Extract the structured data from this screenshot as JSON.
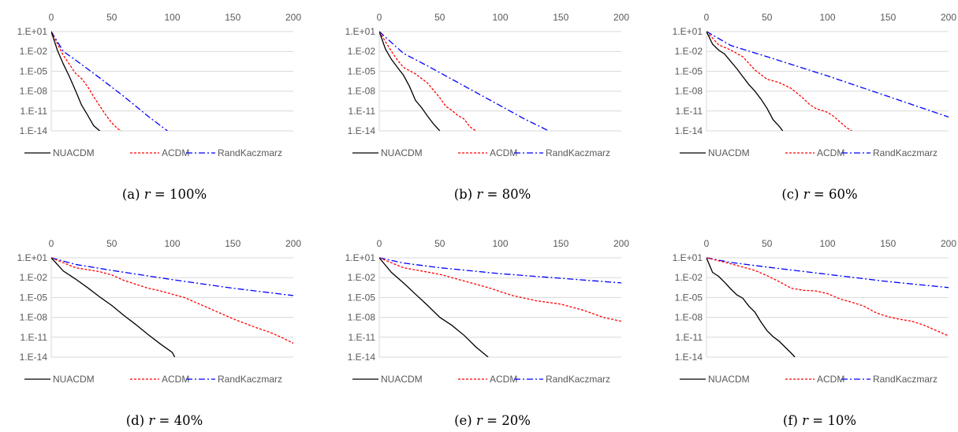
{
  "chart_data": [
    {
      "type": "line",
      "caption": {
        "label": "(a)",
        "var": "r",
        "eq": "=",
        "value": "100%"
      },
      "x_ticks": [
        "0",
        "50",
        "100",
        "150",
        "200"
      ],
      "y_ticks": [
        "1.E+01",
        "1.E-02",
        "1.E-05",
        "1.E-08",
        "1.E-11",
        "1.E-14"
      ],
      "xlim": [
        0,
        200
      ],
      "ylim_log10": [
        -14,
        1
      ],
      "y_scale": "log",
      "x_axis_position": "top",
      "legend_position": "bottom",
      "series": [
        {
          "name": "NUACDM",
          "color": "#000000",
          "dash": "solid",
          "x": [
            0,
            5,
            10,
            15,
            20,
            25,
            30,
            35,
            40,
            45
          ],
          "log10_y": [
            1,
            -1.8,
            -3.9,
            -5.8,
            -7.9,
            -10.1,
            -11.6,
            -13.2,
            -14,
            -15
          ]
        },
        {
          "name": "ACDM",
          "color": "#ff0000",
          "dash": "dashed",
          "x": [
            0,
            10,
            20,
            25,
            30,
            35,
            40,
            45,
            50,
            55,
            58
          ],
          "log10_y": [
            1,
            -2.6,
            -5.3,
            -6.1,
            -7.3,
            -8.8,
            -10.2,
            -11.6,
            -12.8,
            -13.7,
            -14
          ]
        },
        {
          "name": "RandKaczmarz",
          "color": "#0000ff",
          "dash": "dashdot",
          "x": [
            0,
            10,
            20,
            40,
            60,
            80,
            96
          ],
          "log10_y": [
            1,
            -2.0,
            -3.3,
            -6.0,
            -8.8,
            -11.8,
            -14
          ]
        }
      ]
    },
    {
      "type": "line",
      "caption": {
        "label": "(b)",
        "var": "r",
        "eq": "=",
        "value": "80%"
      },
      "x_ticks": [
        "0",
        "50",
        "100",
        "150",
        "200"
      ],
      "y_ticks": [
        "1.E+01",
        "1.E-02",
        "1.E-05",
        "1.E-08",
        "1.E-11",
        "1.E-14"
      ],
      "xlim": [
        0,
        200
      ],
      "ylim_log10": [
        -14,
        1
      ],
      "y_scale": "log",
      "x_axis_position": "top",
      "legend_position": "bottom",
      "series": [
        {
          "name": "NUACDM",
          "color": "#000000",
          "dash": "solid",
          "x": [
            0,
            5,
            10,
            15,
            20,
            25,
            30,
            35,
            40,
            45,
            50
          ],
          "log10_y": [
            1,
            -1.6,
            -3.2,
            -4.4,
            -5.6,
            -7.3,
            -9.4,
            -10.5,
            -11.8,
            -13.0,
            -14
          ]
        },
        {
          "name": "ACDM",
          "color": "#ff0000",
          "dash": "dashed",
          "x": [
            0,
            10,
            15,
            20,
            30,
            40,
            45,
            50,
            55,
            60,
            65,
            70,
            75,
            80
          ],
          "log10_y": [
            1,
            -2.0,
            -3.3,
            -4.4,
            -5.4,
            -6.8,
            -7.9,
            -9.0,
            -10.3,
            -10.9,
            -11.7,
            -12.2,
            -13.4,
            -14
          ]
        },
        {
          "name": "RandKaczmarz",
          "color": "#0000ff",
          "dash": "dashdot",
          "x": [
            0,
            20,
            40,
            60,
            80,
            100,
            120,
            140
          ],
          "log10_y": [
            1,
            -2.3,
            -4.2,
            -6.2,
            -8.2,
            -10.2,
            -12.2,
            -14
          ]
        }
      ]
    },
    {
      "type": "line",
      "caption": {
        "label": "(c)",
        "var": "r",
        "eq": "=",
        "value": "60%"
      },
      "x_ticks": [
        "0",
        "50",
        "100",
        "150",
        "200"
      ],
      "y_ticks": [
        "1.E+01",
        "1.E-02",
        "1.E-05",
        "1.E-08",
        "1.E-11",
        "1.E-14"
      ],
      "xlim": [
        0,
        200
      ],
      "ylim_log10": [
        -14,
        1
      ],
      "y_scale": "log",
      "x_axis_position": "top",
      "legend_position": "bottom",
      "series": [
        {
          "name": "NUACDM",
          "color": "#000000",
          "dash": "solid",
          "x": [
            0,
            5,
            10,
            15,
            20,
            25,
            30,
            35,
            40,
            45,
            50,
            55,
            60,
            63
          ],
          "log10_y": [
            1,
            -0.9,
            -1.8,
            -2.4,
            -3.5,
            -4.6,
            -5.8,
            -7.0,
            -8.0,
            -9.2,
            -10.6,
            -12.3,
            -13.3,
            -14
          ]
        },
        {
          "name": "ACDM",
          "color": "#ff0000",
          "dash": "dashed",
          "x": [
            0,
            10,
            20,
            30,
            40,
            50,
            60,
            70,
            80,
            85,
            90,
            95,
            100,
            105,
            110,
            115,
            120
          ],
          "log10_y": [
            1,
            -1.0,
            -1.8,
            -2.8,
            -4.8,
            -6.2,
            -6.7,
            -7.6,
            -9.1,
            -10.0,
            -10.6,
            -10.9,
            -11.2,
            -11.8,
            -12.6,
            -13.4,
            -14
          ]
        },
        {
          "name": "RandKaczmarz",
          "color": "#0000ff",
          "dash": "dashdot",
          "x": [
            0,
            20,
            50,
            100,
            150,
            200
          ],
          "log10_y": [
            1,
            -1.1,
            -2.8,
            -5.7,
            -8.8,
            -11.9
          ]
        }
      ]
    },
    {
      "type": "line",
      "caption": {
        "label": "(d)",
        "var": "r",
        "eq": "=",
        "value": "40%"
      },
      "x_ticks": [
        "0",
        "50",
        "100",
        "150",
        "200"
      ],
      "y_ticks": [
        "1.E+01",
        "1.E-02",
        "1.E-05",
        "1.E-08",
        "1.E-11",
        "1.E-14"
      ],
      "xlim": [
        0,
        200
      ],
      "ylim_log10": [
        -14,
        1
      ],
      "y_scale": "log",
      "x_axis_position": "top",
      "legend_position": "bottom",
      "series": [
        {
          "name": "NUACDM",
          "color": "#000000",
          "dash": "solid",
          "x": [
            0,
            10,
            20,
            30,
            40,
            50,
            60,
            70,
            80,
            90,
            100,
            102
          ],
          "log10_y": [
            1,
            -1.0,
            -2.2,
            -3.5,
            -4.9,
            -6.2,
            -7.7,
            -9.1,
            -10.6,
            -12.0,
            -13.3,
            -14
          ]
        },
        {
          "name": "ACDM",
          "color": "#ff0000",
          "dash": "dashed",
          "x": [
            0,
            20,
            40,
            50,
            60,
            70,
            80,
            90,
            100,
            110,
            120,
            130,
            140,
            150,
            160,
            170,
            180,
            190,
            200
          ],
          "log10_y": [
            1,
            -0.5,
            -1.1,
            -1.6,
            -2.4,
            -3.0,
            -3.6,
            -4.0,
            -4.5,
            -5.0,
            -5.8,
            -6.6,
            -7.4,
            -8.2,
            -8.9,
            -9.6,
            -10.2,
            -11.0,
            -11.9
          ]
        },
        {
          "name": "RandKaczmarz",
          "color": "#0000ff",
          "dash": "dashdot",
          "x": [
            0,
            20,
            50,
            100,
            150,
            200
          ],
          "log10_y": [
            1,
            0.0,
            -0.9,
            -2.3,
            -3.6,
            -4.7
          ]
        }
      ]
    },
    {
      "type": "line",
      "caption": {
        "label": "(e)",
        "var": "r",
        "eq": "=",
        "value": "20%"
      },
      "x_ticks": [
        "0",
        "50",
        "100",
        "150",
        "200"
      ],
      "y_ticks": [
        "1.E+01",
        "1.E-02",
        "1.E-05",
        "1.E-08",
        "1.E-11",
        "1.E-14"
      ],
      "xlim": [
        0,
        200
      ],
      "ylim_log10": [
        -14,
        1
      ],
      "y_scale": "log",
      "x_axis_position": "top",
      "legend_position": "bottom",
      "series": [
        {
          "name": "NUACDM",
          "color": "#000000",
          "dash": "solid",
          "x": [
            0,
            10,
            20,
            30,
            40,
            50,
            60,
            70,
            80,
            90
          ],
          "log10_y": [
            1,
            -1.2,
            -2.8,
            -4.5,
            -6.2,
            -8.0,
            -9.2,
            -10.7,
            -12.5,
            -14
          ]
        },
        {
          "name": "ACDM",
          "color": "#ff0000",
          "dash": "dashed",
          "x": [
            0,
            20,
            50,
            70,
            90,
            110,
            130,
            150,
            170,
            185,
            200
          ],
          "log10_y": [
            1,
            -0.5,
            -1.5,
            -2.5,
            -3.5,
            -4.7,
            -5.5,
            -6.0,
            -7.0,
            -8.0,
            -8.6
          ]
        },
        {
          "name": "RandKaczmarz",
          "color": "#0000ff",
          "dash": "dashdot",
          "x": [
            0,
            20,
            50,
            100,
            150,
            200
          ],
          "log10_y": [
            1,
            0.2,
            -0.5,
            -1.4,
            -2.1,
            -2.8
          ]
        }
      ]
    },
    {
      "type": "line",
      "caption": {
        "label": "(f)",
        "var": "r",
        "eq": "=",
        "value": "10%"
      },
      "x_ticks": [
        "0",
        "50",
        "100",
        "150",
        "200"
      ],
      "y_ticks": [
        "1.E+01",
        "1.E-02",
        "1.E-05",
        "1.E-08",
        "1.E-11",
        "1.E-14"
      ],
      "xlim": [
        0,
        200
      ],
      "ylim_log10": [
        -14,
        1
      ],
      "y_scale": "log",
      "x_axis_position": "top",
      "legend_position": "bottom",
      "series": [
        {
          "name": "NUACDM",
          "color": "#000000",
          "dash": "solid",
          "x": [
            0,
            5,
            10,
            15,
            20,
            25,
            30,
            35,
            40,
            45,
            50,
            55,
            60,
            65,
            70,
            73
          ],
          "log10_y": [
            1,
            -1.2,
            -1.8,
            -2.7,
            -3.7,
            -4.6,
            -5.1,
            -6.3,
            -7.2,
            -8.7,
            -10.0,
            -10.9,
            -11.6,
            -12.5,
            -13.4,
            -14
          ]
        },
        {
          "name": "ACDM",
          "color": "#ff0000",
          "dash": "dashed",
          "x": [
            0,
            20,
            40,
            50,
            60,
            70,
            80,
            90,
            100,
            110,
            120,
            130,
            140,
            150,
            160,
            170,
            180,
            190,
            200
          ],
          "log10_y": [
            1,
            0.1,
            -0.9,
            -1.7,
            -2.6,
            -3.6,
            -3.9,
            -4.0,
            -4.4,
            -5.2,
            -5.7,
            -6.3,
            -7.3,
            -7.9,
            -8.3,
            -8.6,
            -9.2,
            -10.0,
            -10.8
          ]
        },
        {
          "name": "RandKaczmarz",
          "color": "#0000ff",
          "dash": "dashdot",
          "x": [
            0,
            20,
            50,
            100,
            150,
            200
          ],
          "log10_y": [
            1,
            0.3,
            -0.4,
            -1.5,
            -2.6,
            -3.5
          ]
        }
      ]
    }
  ]
}
